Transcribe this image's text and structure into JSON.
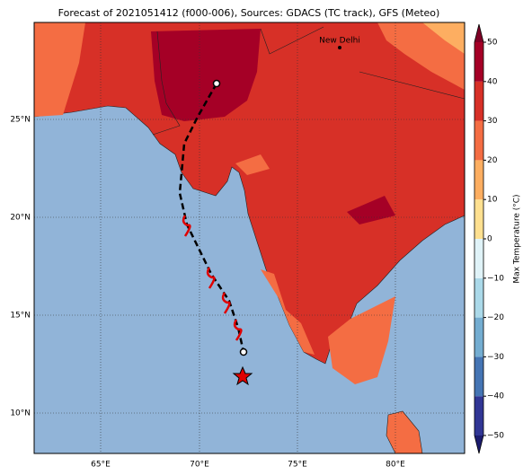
{
  "title": "Forecast of 2021051412 (f000-006), Sources: GDACS (TC track), GFS (Meteo)",
  "map": {
    "lon_labels": [
      "65°E",
      "70°E",
      "75°E",
      "80°E"
    ],
    "lat_labels": [
      "25°N",
      "20°N",
      "15°N",
      "10°N"
    ],
    "city": "New Delhi"
  },
  "colorbar": {
    "label": "Max Temperature (°C)",
    "lim": [
      -50,
      50
    ],
    "ticks": [
      {
        "value": -50,
        "label": "−50"
      },
      {
        "value": -40,
        "label": "−40"
      },
      {
        "value": -30,
        "label": "−30"
      },
      {
        "value": -20,
        "label": "−20"
      },
      {
        "value": -10,
        "label": "−10"
      },
      0,
      10,
      20,
      30,
      40,
      50
    ],
    "colors": [
      "#313695",
      "#4575b4",
      "#74add1",
      "#abd9e9",
      "#e0f3f8",
      "#fee090",
      "#fdae61",
      "#f46d43",
      "#d73027",
      "#a50026"
    ],
    "extend_colors": [
      "#1c1c6e",
      "#7f0026"
    ]
  }
}
